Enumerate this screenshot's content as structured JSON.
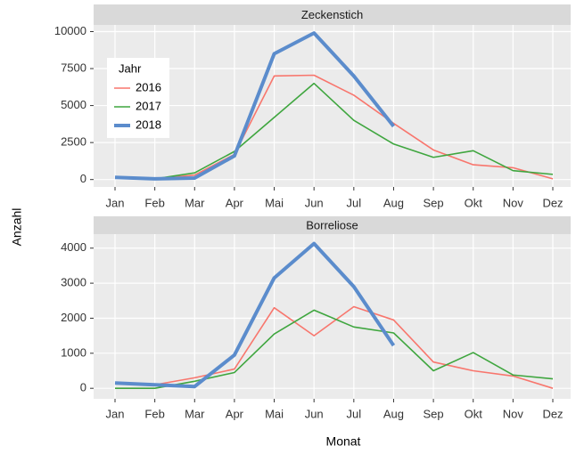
{
  "xlabel": "Monat",
  "ylabel": "Anzahl",
  "legend_title": "Jahr",
  "chart_data": [
    {
      "type": "line",
      "title": "Zeckenstich",
      "categories": [
        "Jan",
        "Feb",
        "Mar",
        "Apr",
        "Mai",
        "Jun",
        "Jul",
        "Aug",
        "Sep",
        "Okt",
        "Nov",
        "Dez"
      ],
      "ylim": [
        -500,
        10450
      ],
      "yticks": [
        0,
        2500,
        5000,
        7500,
        10000
      ],
      "grid": true,
      "legend": "upper left",
      "series": [
        {
          "name": "2016",
          "color": "#f8766d",
          "line_width": 1.6,
          "values": [
            150,
            50,
            300,
            1700,
            7000,
            7050,
            5700,
            3800,
            2000,
            1000,
            800,
            50
          ]
        },
        {
          "name": "2017",
          "color": "#3fa63f",
          "line_width": 1.6,
          "values": [
            100,
            50,
            450,
            1900,
            4200,
            6500,
            4000,
            2400,
            1500,
            1950,
            600,
            350
          ]
        },
        {
          "name": "2018",
          "color": "#5b8ccc",
          "line_width": 4,
          "values": [
            150,
            50,
            100,
            1600,
            8500,
            9900,
            7000,
            3600,
            null,
            null,
            null,
            null
          ]
        }
      ]
    },
    {
      "type": "line",
      "title": "Borreliose",
      "categories": [
        "Jan",
        "Feb",
        "Mar",
        "Apr",
        "Mai",
        "Jun",
        "Jul",
        "Aug",
        "Sep",
        "Okt",
        "Nov",
        "Dez"
      ],
      "ylim": [
        -300,
        4400
      ],
      "yticks": [
        0,
        1000,
        2000,
        3000,
        4000
      ],
      "grid": true,
      "series": [
        {
          "color": "#f8766d",
          "line_width": 1.6,
          "values": [
            150,
            100,
            300,
            550,
            2300,
            1500,
            2330,
            1950,
            750,
            500,
            350,
            0
          ]
        },
        {
          "color": "#3fa63f",
          "line_width": 1.6,
          "values": [
            0,
            0,
            200,
            450,
            1550,
            2230,
            1750,
            1580,
            500,
            1020,
            380,
            270
          ]
        },
        {
          "color": "#5b8ccc",
          "line_width": 4,
          "values": [
            150,
            100,
            50,
            950,
            3150,
            4130,
            2900,
            1220,
            null,
            null,
            null,
            null
          ]
        }
      ]
    }
  ]
}
